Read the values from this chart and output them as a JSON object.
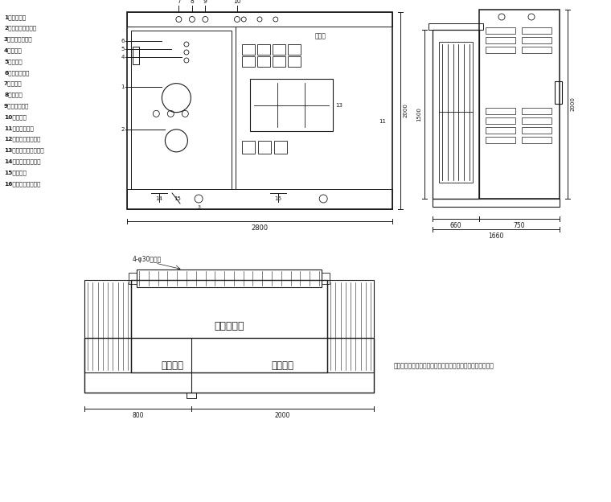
{
  "bg_color": "#ffffff",
  "line_color": "#1a1a1a",
  "legend_items": [
    "1、高压套管",
    "2、四位置负荷开关",
    "3、调压分接开关",
    "4、油位计",
    "5、注油口",
    "6、压力释放阀",
    "7、温度计",
    "8、压力表",
    "9、低压断路器",
    "10、表计室",
    "11、无功补偿室",
    "12、低压侧主断路器",
    "13、低压侧负荷断路器",
    "14、高压室接地端子",
    "15、放油阀",
    "16、低压室接地端子"
  ],
  "note_text": "说明：以上尺寸仅供作为参考，最终尺寸以厂家产品实物为准",
  "dim_front_width": "2800",
  "dim_side_left": "660",
  "dim_side_right": "750",
  "dim_side_total": "1660",
  "dim_front_height": "2000",
  "dim_side_height1": "1500",
  "dim_side_height2": "2000",
  "dim_bottom_left": "800",
  "dim_bottom_right": "2000",
  "label_transformer": "变压器主体",
  "label_hv": "高压间隔",
  "label_lv": "低压间隔",
  "label_bolt": "4-φ30安装孔",
  "label_meter": "表计室"
}
